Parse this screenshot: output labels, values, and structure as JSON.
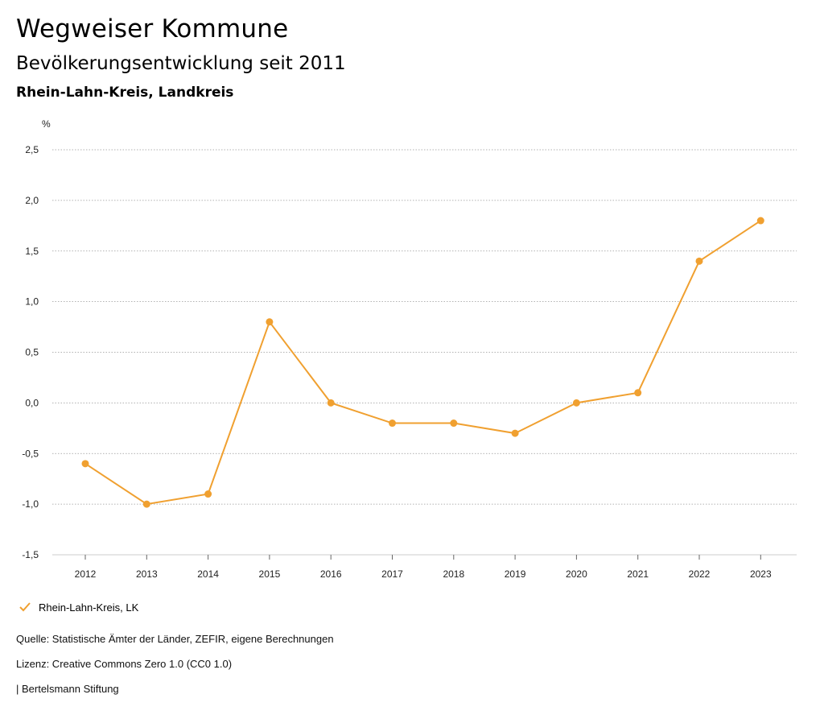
{
  "header": {
    "title": "Wegweiser Kommune",
    "subtitle": "Bevölkerungsentwicklung seit 2011",
    "region": "Rhein-Lahn-Kreis, Landkreis"
  },
  "chart_data": {
    "type": "line",
    "ylabel": "%",
    "xlabel": "",
    "categories": [
      "2012",
      "2013",
      "2014",
      "2015",
      "2016",
      "2017",
      "2018",
      "2019",
      "2020",
      "2021",
      "2022",
      "2023"
    ],
    "series": [
      {
        "name": "Rhein-Lahn-Kreis, LK",
        "color": "#f0a030",
        "values": [
          -0.6,
          -1.0,
          -0.9,
          0.8,
          0.0,
          -0.2,
          -0.2,
          -0.3,
          0.0,
          0.1,
          1.4,
          1.8
        ]
      }
    ],
    "ylim": [
      -1.5,
      2.5
    ],
    "yticks": [
      2.5,
      2.0,
      1.5,
      1.0,
      0.5,
      0.0,
      -0.5,
      -1.0,
      -1.5
    ],
    "ytick_labels": [
      "2,5",
      "2,0",
      "1,5",
      "1,0",
      "0,5",
      "0,0",
      "-0,5",
      "-1,0",
      "-1,5"
    ],
    "grid": true,
    "legend_position": "bottom-left"
  },
  "legend": {
    "label": "Rhein-Lahn-Kreis, LK",
    "icon": "check-icon"
  },
  "footer": {
    "source": "Quelle: Statistische Ämter der Länder, ZEFIR, eigene Berechnungen",
    "license": "Lizenz: Creative Commons Zero 1.0 (CC0 1.0)",
    "brand": "| Bertelsmann Stiftung"
  }
}
